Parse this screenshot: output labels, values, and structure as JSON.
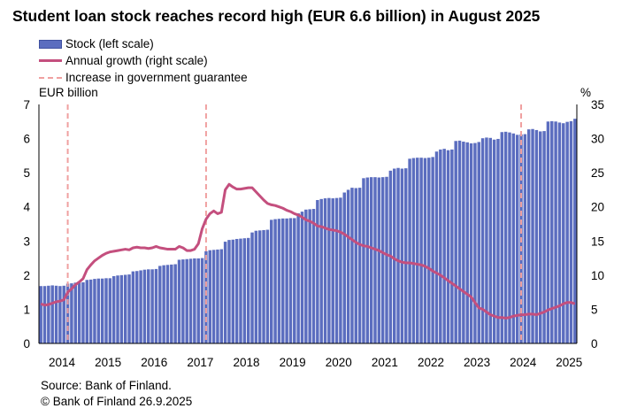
{
  "title": "Student loan stock reaches record high (EUR 6.6 billion) in August 2025",
  "legend": {
    "stock": "Stock (left scale)",
    "growth": "Annual growth (right scale)",
    "guarantee": "Increase in government guarantee"
  },
  "units": {
    "left": "EUR billion",
    "right": "%"
  },
  "source": "Source: Bank of Finland.",
  "copyright": "© Bank of Finland 26.9.2025",
  "colors": {
    "bars": "#5b6dbf",
    "bar_edge": "#3f50a0",
    "growth": "#c44f7e",
    "guarantee": "#f0a0a0"
  },
  "chart_data": {
    "type": "bar+line",
    "x_start": "2014-01",
    "x_end": "2025-08",
    "x_ticks": [
      "2014",
      "2015",
      "2016",
      "2017",
      "2018",
      "2019",
      "2020",
      "2021",
      "2022",
      "2023",
      "2024",
      "2025"
    ],
    "y_left": {
      "label": "EUR billion",
      "ticks": [
        0,
        1,
        2,
        3,
        4,
        5,
        6,
        7
      ],
      "lim": [
        0,
        7
      ]
    },
    "y_right": {
      "label": "%",
      "ticks": [
        0,
        5,
        10,
        15,
        20,
        25,
        30,
        35
      ],
      "lim": [
        0,
        35
      ]
    },
    "grid": false,
    "legend_position": "top-left",
    "series": [
      {
        "name": "Stock (left scale)",
        "type": "bar",
        "axis": "left",
        "values": [
          1.68,
          1.68,
          1.69,
          1.7,
          1.69,
          1.68,
          1.69,
          1.75,
          1.76,
          1.78,
          1.78,
          1.79,
          1.86,
          1.87,
          1.89,
          1.9,
          1.9,
          1.91,
          1.91,
          1.97,
          1.99,
          2.0,
          2.01,
          2.02,
          2.11,
          2.12,
          2.14,
          2.16,
          2.17,
          2.17,
          2.18,
          2.27,
          2.29,
          2.3,
          2.31,
          2.32,
          2.45,
          2.46,
          2.47,
          2.48,
          2.49,
          2.49,
          2.5,
          2.7,
          2.73,
          2.74,
          2.75,
          2.76,
          2.98,
          3.03,
          3.04,
          3.06,
          3.07,
          3.08,
          3.09,
          3.25,
          3.3,
          3.31,
          3.32,
          3.33,
          3.62,
          3.64,
          3.65,
          3.66,
          3.66,
          3.67,
          3.67,
          3.81,
          3.86,
          3.92,
          3.93,
          3.94,
          4.2,
          4.23,
          4.25,
          4.26,
          4.25,
          4.26,
          4.27,
          4.42,
          4.5,
          4.56,
          4.55,
          4.56,
          4.84,
          4.86,
          4.87,
          4.87,
          4.86,
          4.87,
          4.88,
          5.06,
          5.12,
          5.14,
          5.12,
          5.13,
          5.41,
          5.43,
          5.44,
          5.44,
          5.43,
          5.44,
          5.46,
          5.62,
          5.68,
          5.7,
          5.66,
          5.68,
          5.93,
          5.94,
          5.91,
          5.89,
          5.86,
          5.87,
          5.9,
          6.01,
          6.03,
          6.02,
          5.97,
          5.99,
          6.19,
          6.2,
          6.18,
          6.15,
          6.11,
          6.12,
          6.13,
          6.27,
          6.28,
          6.25,
          6.21,
          6.22,
          6.5,
          6.51,
          6.5,
          6.47,
          6.45,
          6.49,
          6.51,
          6.58
        ]
      },
      {
        "name": "Annual growth (right scale)",
        "type": "line",
        "axis": "right",
        "values": [
          5.8,
          5.6,
          5.7,
          5.9,
          6.1,
          6.2,
          6.4,
          7.5,
          8.0,
          8.6,
          9.0,
          9.5,
          10.8,
          11.5,
          12.1,
          12.5,
          12.9,
          13.2,
          13.4,
          13.5,
          13.6,
          13.7,
          13.8,
          13.7,
          14.0,
          14.1,
          14.0,
          14.0,
          13.9,
          14.0,
          14.2,
          14.0,
          13.9,
          13.8,
          13.8,
          13.8,
          14.2,
          14.0,
          13.6,
          13.6,
          13.8,
          14.6,
          16.8,
          18.2,
          19.0,
          19.4,
          19.0,
          19.2,
          22.5,
          23.3,
          22.9,
          22.6,
          22.6,
          22.7,
          22.8,
          22.8,
          22.2,
          21.6,
          21.0,
          20.5,
          20.3,
          20.2,
          20.0,
          19.8,
          19.5,
          19.3,
          19.0,
          18.8,
          18.5,
          18.1,
          17.9,
          17.6,
          17.2,
          17.1,
          16.9,
          16.7,
          16.6,
          16.5,
          16.3,
          16.0,
          15.6,
          15.2,
          14.8,
          14.5,
          14.3,
          14.2,
          14.0,
          13.8,
          13.6,
          13.3,
          13.0,
          12.8,
          12.4,
          12.1,
          11.9,
          11.8,
          11.8,
          11.7,
          11.6,
          11.5,
          11.3,
          11.0,
          10.6,
          10.3,
          10.0,
          9.6,
          9.2,
          8.8,
          8.4,
          8.0,
          7.6,
          7.2,
          6.8,
          6.0,
          5.2,
          5.0,
          4.6,
          4.2,
          4.0,
          3.8,
          3.8,
          3.7,
          3.8,
          4.0,
          4.1,
          4.2,
          4.2,
          4.3,
          4.3,
          4.2,
          4.4,
          4.6,
          4.9,
          5.1,
          5.3,
          5.5,
          5.8,
          6.0,
          6.0,
          5.8
        ]
      }
    ],
    "guarantee_increases": [
      "2014-08",
      "2017-08",
      "2024-06"
    ]
  }
}
